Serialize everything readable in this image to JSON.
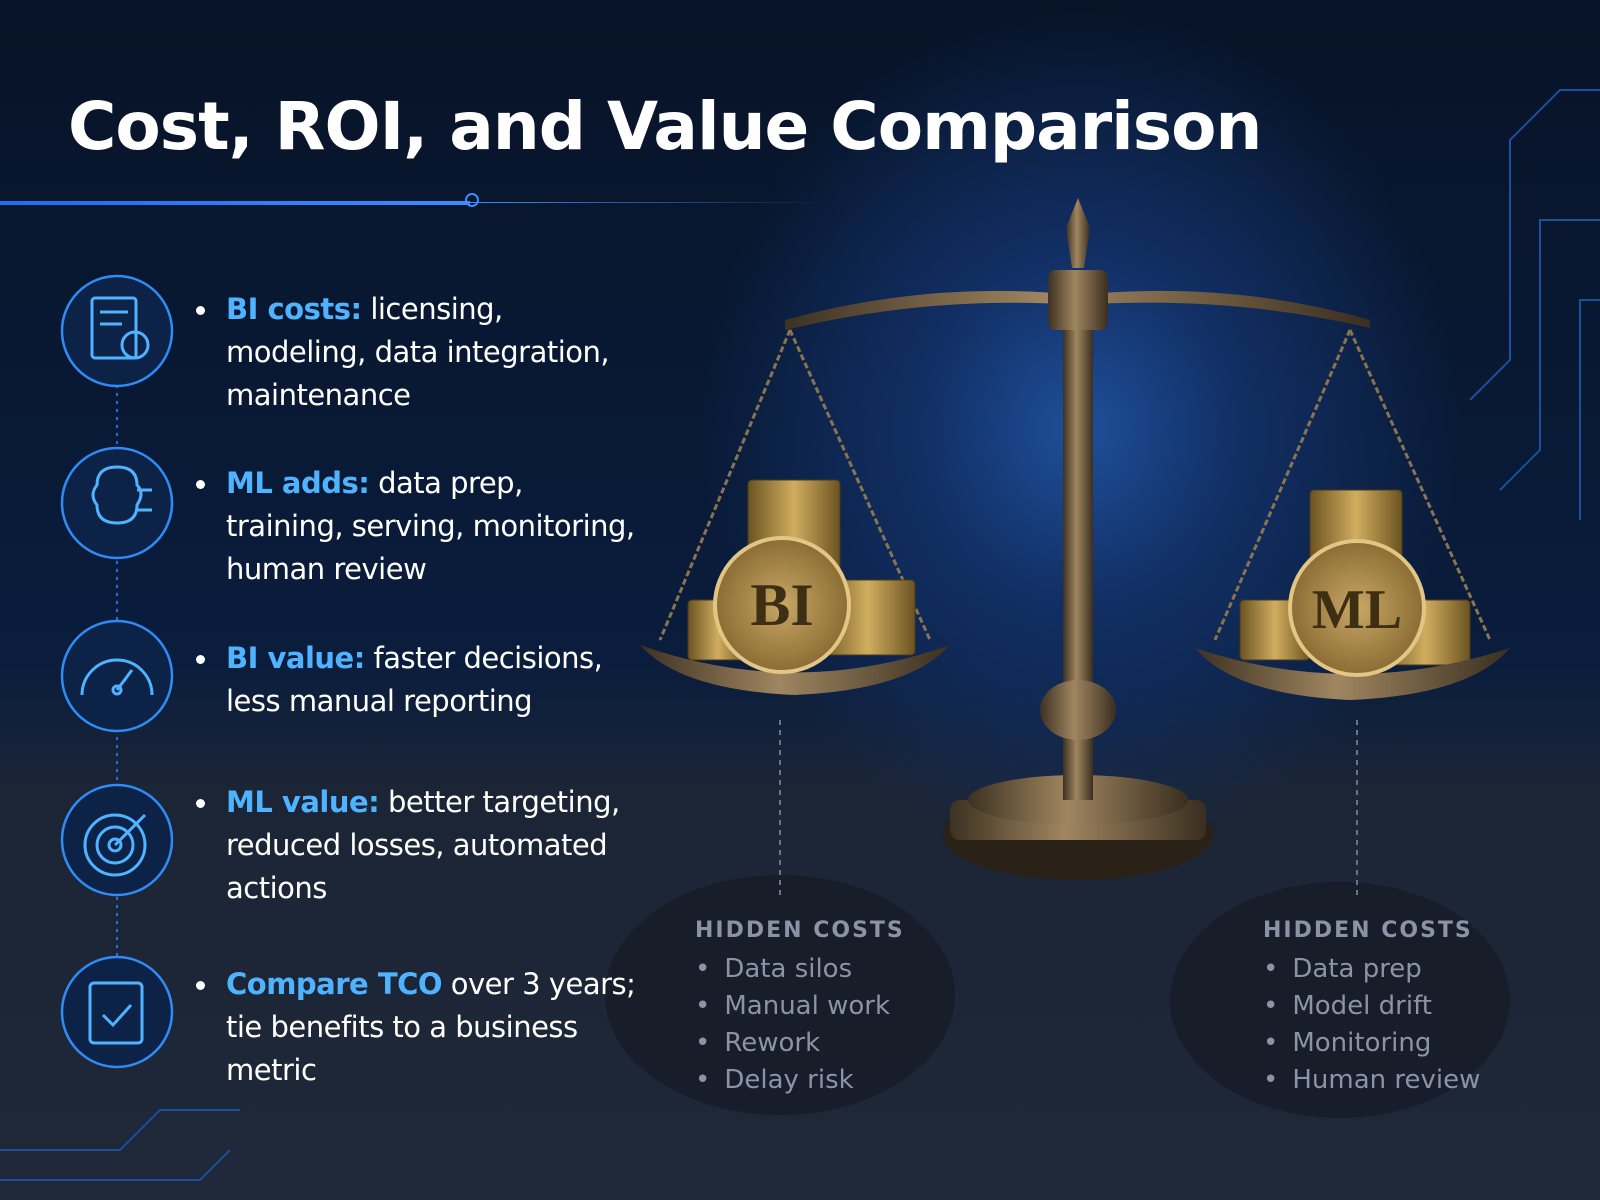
{
  "header": {
    "title": "Cost, ROI, and Value Comparison"
  },
  "items": [
    {
      "lead": "BI costs:",
      "text": "licensing, modeling, data integration, maintenance"
    },
    {
      "lead": "ML adds:",
      "text": "data prep, training, serving, monitoring, human review"
    },
    {
      "lead": "BI value:",
      "text": "faster decisions, less manual reporting"
    },
    {
      "lead": "ML value:",
      "text": "better targeting, reduced losses, automated actions"
    },
    {
      "lead": "Compare TCO",
      "text": "over 3 years; tie benefits to a business metric"
    }
  ],
  "scale": {
    "left_label": "BI",
    "right_label": "ML"
  },
  "hidden_costs": [
    {
      "title": "HIDDEN COSTS",
      "items": [
        "Data silos",
        "Manual work",
        "Rework",
        "Delay risk"
      ]
    },
    {
      "title": "HIDDEN COSTS",
      "items": [
        "Data prep",
        "Model drift",
        "Monitoring",
        "Human review"
      ]
    }
  ]
}
